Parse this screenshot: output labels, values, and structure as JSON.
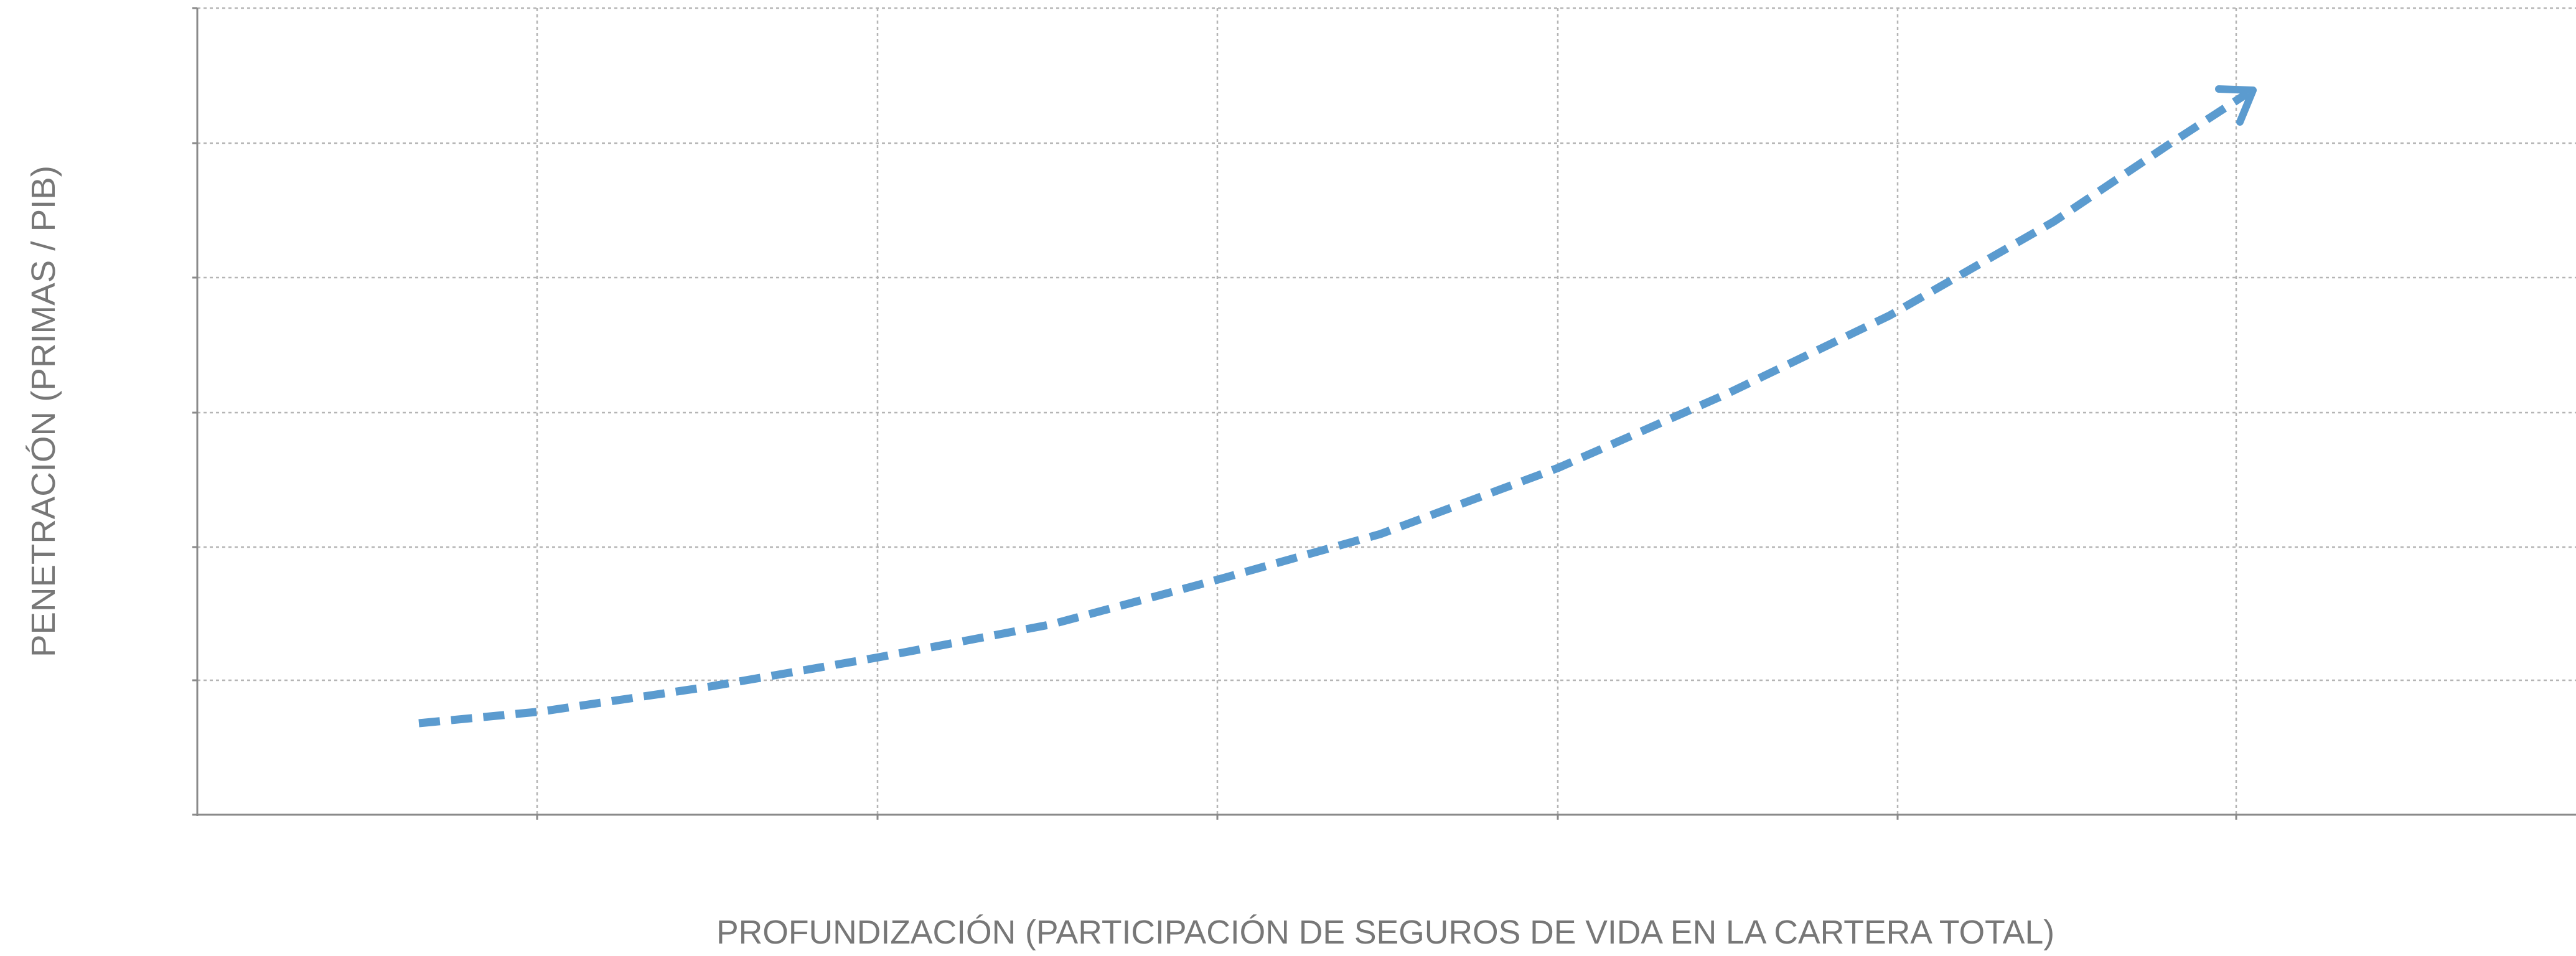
{
  "chart_data": {
    "type": "concept",
    "x_label": "PROFUNDIZACIÓN (PARTICIPACIÓN DE SEGUROS DE VIDA EN LA CARTERA TOTAL)",
    "y_label": "PENETRACIÓN (PRIMAS / PIB)"
  }
}
